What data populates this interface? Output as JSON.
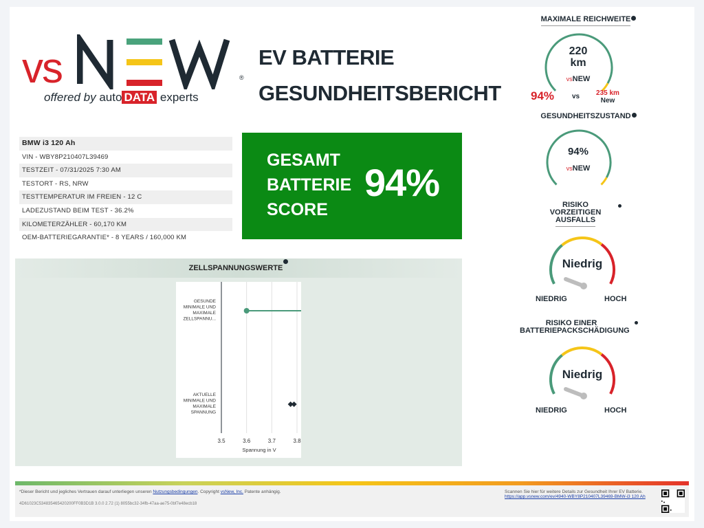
{
  "logo": {
    "vs": "vs",
    "new": "NEW",
    "reg": "®",
    "offered_by": "offered by",
    "auto": "auto",
    "data": "DATA",
    "experts": "experts"
  },
  "title": {
    "line1": "EV BATTERIE",
    "line2": "GESUNDHEITSBERICHT"
  },
  "vehicle": {
    "model": "BMW i3 120 Ah",
    "rows": [
      "VIN - WBY8P210407L39469",
      "TESTZEIT - 07/31/2025 7:30 AM",
      "TESTORT - RS, NRW",
      "TESTTEMPERATUR IM FREIEN - 12 C",
      "LADEZUSTAND BEIM TEST - 36.2%",
      "KILOMETERZÄHLER - 60,170 KM",
      "OEM-BATTERIEGARANTIE* - 8 YEARS / 160,000 KM"
    ]
  },
  "score": {
    "label1": "GESAMT",
    "label2": "BATTERIE",
    "label3": "SCORE",
    "value": "94%"
  },
  "cells": {
    "title": "ZELLSPANNUNGSWERTE"
  },
  "chart_data": {
    "type": "scatter",
    "title": "",
    "xlabel": "Spannung in V",
    "ylabel": "",
    "xlim": [
      3.5,
      3.8
    ],
    "xticks": [
      "3.5",
      "3.6",
      "3.7",
      "3.8"
    ],
    "categories": [
      [
        "GESUNDE",
        "MINIMALE UND",
        "MAXIMALE",
        "ZELLSPANNU..."
      ],
      [
        "AKTUELLE",
        "MINIMALE UND",
        "MAXIMALE",
        "SPANNUNG"
      ]
    ],
    "series": [
      {
        "category": 0,
        "min": 3.6,
        "max": 3.8,
        "color": "#4a9a7a"
      },
      {
        "category": 1,
        "min": 3.78,
        "max": 3.8,
        "color": "#1f2a33"
      }
    ],
    "grid": true
  },
  "range": {
    "title": "MAXIMALE REICHWEITE",
    "value": "220",
    "unit": "km",
    "pct": "94%",
    "vs": "vs",
    "new_value": "235 km",
    "new_label": "New",
    "fraction": 0.94
  },
  "health": {
    "title": "GESUNDHEITSZUSTAND",
    "value": "94%",
    "fraction": 0.94
  },
  "risk_failure": {
    "title1": "RISIKO",
    "title2": "VORZEITIGEN",
    "title3": "AUSFALLS",
    "value": "Niedrig",
    "low": "NIEDRIG",
    "high": "HOCH",
    "level": 0.1
  },
  "risk_damage": {
    "title1": "RISIKO EINER",
    "title2": "BATTERIEPACKSCHÄDIGUNG",
    "value": "Niedrig",
    "low": "NIEDRIG",
    "high": "HOCH",
    "level": 0.1
  },
  "footer": {
    "disclaimer_pre": "*Dieser Bericht und jegliches Vertrauen darauf unterliegen unseren",
    "terms": "Nutzungsbedingungen",
    "copyright": ". Copyright",
    "company": "vsNew, Inc.",
    "patent": "Patente anhängig.",
    "id": "4D61023C534835465420200FF0B3D1B 3.0.0 2.72 (1) 8055bc32-34fb-47aa-ae75-0bf7e48ecb18",
    "scan": "Scannen Sie hier für weitere Details zur Gesundheit Ihrer EV Batterie.",
    "url": "https://app.vsnew.com/ev/4940-WBY8P210407L39469-BMW-i3 120 Ah"
  },
  "colors": {
    "score_bg": "#0b8a14",
    "brand_red": "#d8232a",
    "gauge_green": "#4a9a7a",
    "gauge_yellow": "#f5c518"
  }
}
